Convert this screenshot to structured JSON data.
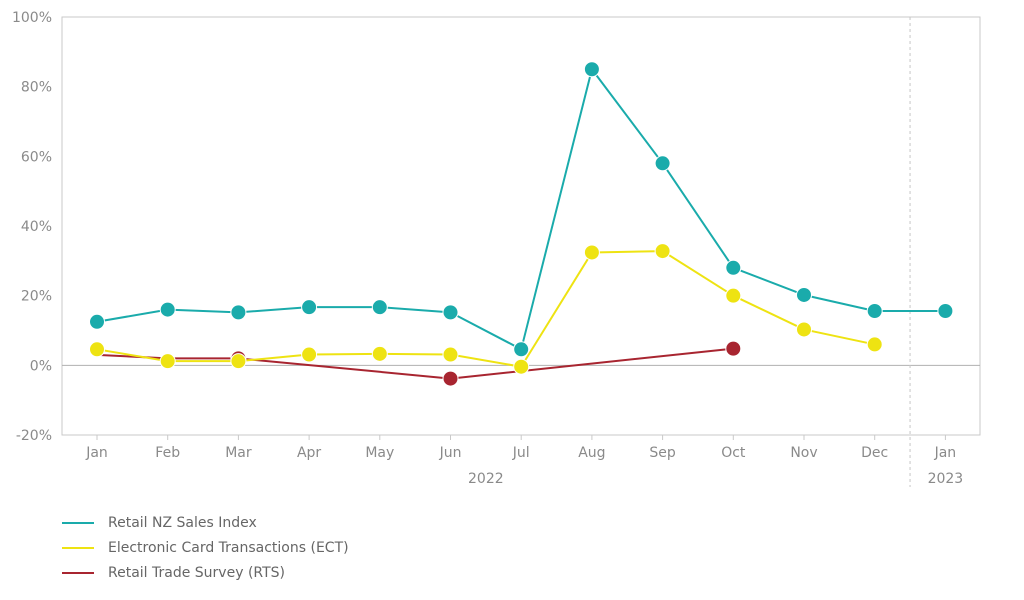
{
  "chart_data": {
    "type": "line",
    "categories": [
      "Jan",
      "Feb",
      "Mar",
      "Apr",
      "May",
      "Jun",
      "Jul",
      "Aug",
      "Sep",
      "Oct",
      "Nov",
      "Dec",
      "Jan"
    ],
    "year_labels": [
      {
        "label": "2022",
        "from": 0,
        "to": 11
      },
      {
        "label": "2023",
        "from": 12,
        "to": 12
      }
    ],
    "y_ticks": [
      "100%",
      "80%",
      "60%",
      "40%",
      "20%",
      "0%",
      "-20%"
    ],
    "ylim": [
      -20,
      100
    ],
    "series": [
      {
        "name": "Retail NZ Sales Index",
        "color": "#1aabab",
        "values": [
          12.5,
          16,
          15.2,
          16.7,
          16.7,
          15.2,
          4.6,
          85,
          58,
          28,
          20.2,
          15.6,
          15.6
        ]
      },
      {
        "name": "Electronic Card Transactions (ECT)",
        "color": "#eee312",
        "values": [
          4.6,
          1.2,
          1.2,
          3.1,
          3.3,
          3.1,
          -0.4,
          32.4,
          32.8,
          20,
          10.3,
          6,
          null
        ]
      },
      {
        "name": "Retail Trade Survey (RTS)",
        "color": "#a82530",
        "values": [
          3,
          2,
          2,
          null,
          null,
          -3.8,
          null,
          null,
          null,
          4.8,
          null,
          null,
          null
        ],
        "markers": [
          false,
          false,
          true,
          false,
          false,
          true,
          false,
          false,
          false,
          true,
          false,
          false,
          false
        ]
      }
    ],
    "divider_after_index": 11,
    "grid": false,
    "legend_position": "bottom-left"
  }
}
